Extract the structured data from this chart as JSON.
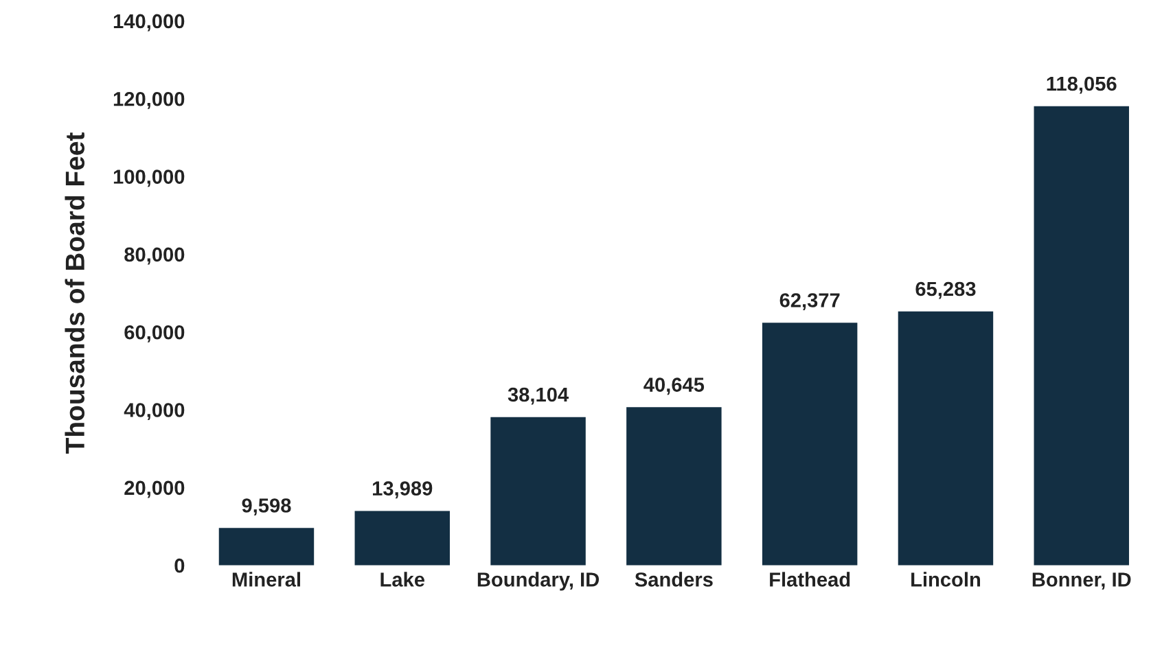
{
  "chart_data": {
    "type": "bar",
    "ylabel": "Thousands of Board Feet",
    "categories": [
      "Mineral",
      "Lake",
      "Boundary, ID",
      "Sanders",
      "Flathead",
      "Lincoln",
      "Bonner, ID"
    ],
    "values": [
      9598,
      13989,
      38104,
      40645,
      62377,
      65283,
      118056
    ],
    "value_labels": [
      "9,598",
      "13,989",
      "38,104",
      "40,645",
      "62,377",
      "65,283",
      "118,056"
    ],
    "color": "#132f43",
    "grid": false,
    "legend": false,
    "ylim": [
      0,
      140000
    ],
    "yticks": [
      {
        "value": 0,
        "label": "0"
      },
      {
        "value": 20000,
        "label": "20,000"
      },
      {
        "value": 40000,
        "label": "40,000"
      },
      {
        "value": 60000,
        "label": "60,000"
      },
      {
        "value": 80000,
        "label": "80,000"
      },
      {
        "value": 100000,
        "label": "100,000"
      },
      {
        "value": 120000,
        "label": "120,000"
      },
      {
        "value": 140000,
        "label": "140,000"
      }
    ]
  }
}
